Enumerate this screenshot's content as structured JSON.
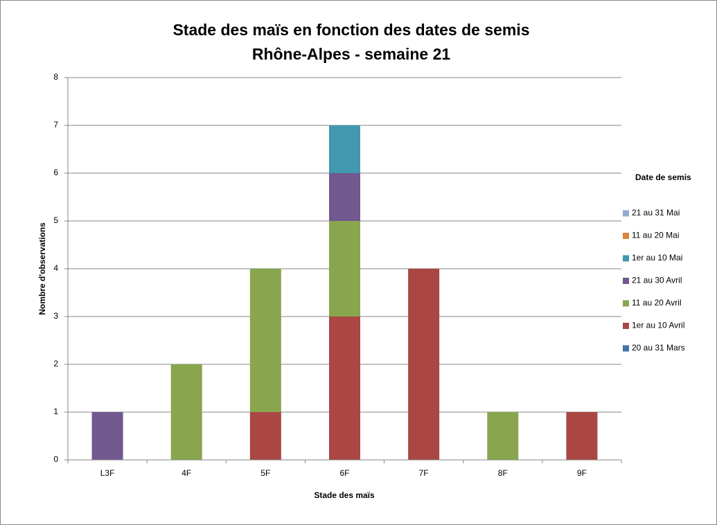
{
  "chart_data": {
    "type": "stacked_bar",
    "title": "Stade des maïs en fonction des dates de semis",
    "subtitle": "Rhône-Alpes - semaine 21",
    "x_label": "Stade des maïs",
    "y_label": "Nombre d'observations",
    "legend_title": "Date de semis",
    "legend_position": "right",
    "grid": true,
    "categories": [
      "L3F",
      "4F",
      "5F",
      "6F",
      "7F",
      "8F",
      "9F"
    ],
    "series": [
      {
        "name": "20 au 31 Mars",
        "color": "#4572a7",
        "values": [
          0,
          0,
          0,
          0,
          0,
          0,
          0
        ]
      },
      {
        "name": "1er au 10 Avril",
        "color": "#aa4643",
        "values": [
          0,
          0,
          1,
          3,
          4,
          0,
          1
        ]
      },
      {
        "name": "11 au 20 Avril",
        "color": "#89a54e",
        "values": [
          0,
          2,
          3,
          2,
          0,
          1,
          0
        ]
      },
      {
        "name": "21 au 30 Avril",
        "color": "#71588f",
        "values": [
          1,
          0,
          0,
          1,
          0,
          0,
          0
        ]
      },
      {
        "name": "1er au 10 Mai",
        "color": "#4198af",
        "values": [
          0,
          0,
          0,
          1,
          0,
          0,
          0
        ]
      },
      {
        "name": "11 au 20 Mai",
        "color": "#db843d",
        "values": [
          0,
          0,
          0,
          0,
          0,
          0,
          0
        ]
      },
      {
        "name": "21 au 31 Mai",
        "color": "#93a9cf",
        "values": [
          0,
          0,
          0,
          0,
          0,
          0,
          0
        ]
      }
    ],
    "ylim": [
      0,
      8
    ],
    "yticks": [
      0,
      1,
      2,
      3,
      4,
      5,
      6,
      7,
      8
    ]
  }
}
